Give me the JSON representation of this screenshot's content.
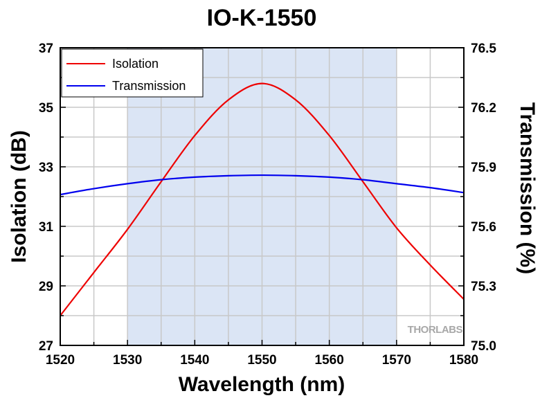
{
  "chart_data": {
    "type": "line",
    "title": "IO-K-1550",
    "xlabel": "Wavelength (nm)",
    "ylabel_left": "Isolation (dB)",
    "ylabel_right": "Transmission (%)",
    "xlim": [
      1520,
      1580
    ],
    "ylim_left": [
      27,
      37
    ],
    "ylim_right": [
      75.0,
      76.5
    ],
    "x_ticks": [
      "1520",
      "1530",
      "1540",
      "1550",
      "1560",
      "1570",
      "1580"
    ],
    "y_left_ticks": [
      "27",
      "29",
      "31",
      "33",
      "35",
      "37"
    ],
    "y_right_ticks": [
      "75.0",
      "75.3",
      "75.6",
      "75.9",
      "76.2",
      "76.5"
    ],
    "grid": true,
    "legend_position": "top-left",
    "shaded_x_range": [
      1530,
      1570
    ],
    "series": [
      {
        "name": "Isolation",
        "axis": "left",
        "color": "#ee0000",
        "x": [
          1520,
          1525,
          1530,
          1535,
          1540,
          1545,
          1550,
          1555,
          1560,
          1565,
          1570,
          1575,
          1580
        ],
        "y": [
          28.0,
          29.45,
          30.9,
          32.5,
          34.05,
          35.25,
          35.8,
          35.25,
          34.05,
          32.5,
          30.95,
          29.7,
          28.55
        ]
      },
      {
        "name": "Transmission",
        "axis": "right",
        "color": "#0000ee",
        "x": [
          1520,
          1525,
          1530,
          1535,
          1540,
          1545,
          1550,
          1555,
          1560,
          1565,
          1570,
          1575,
          1580
        ],
        "y": [
          75.76,
          75.79,
          75.815,
          75.835,
          75.848,
          75.855,
          75.858,
          75.855,
          75.848,
          75.835,
          75.815,
          75.795,
          75.77
        ]
      }
    ],
    "watermark": "THORLABS",
    "colors": {
      "shaded_band": "#dbe5f5",
      "grid": "#c8c8c8",
      "axis": "#000000"
    }
  }
}
